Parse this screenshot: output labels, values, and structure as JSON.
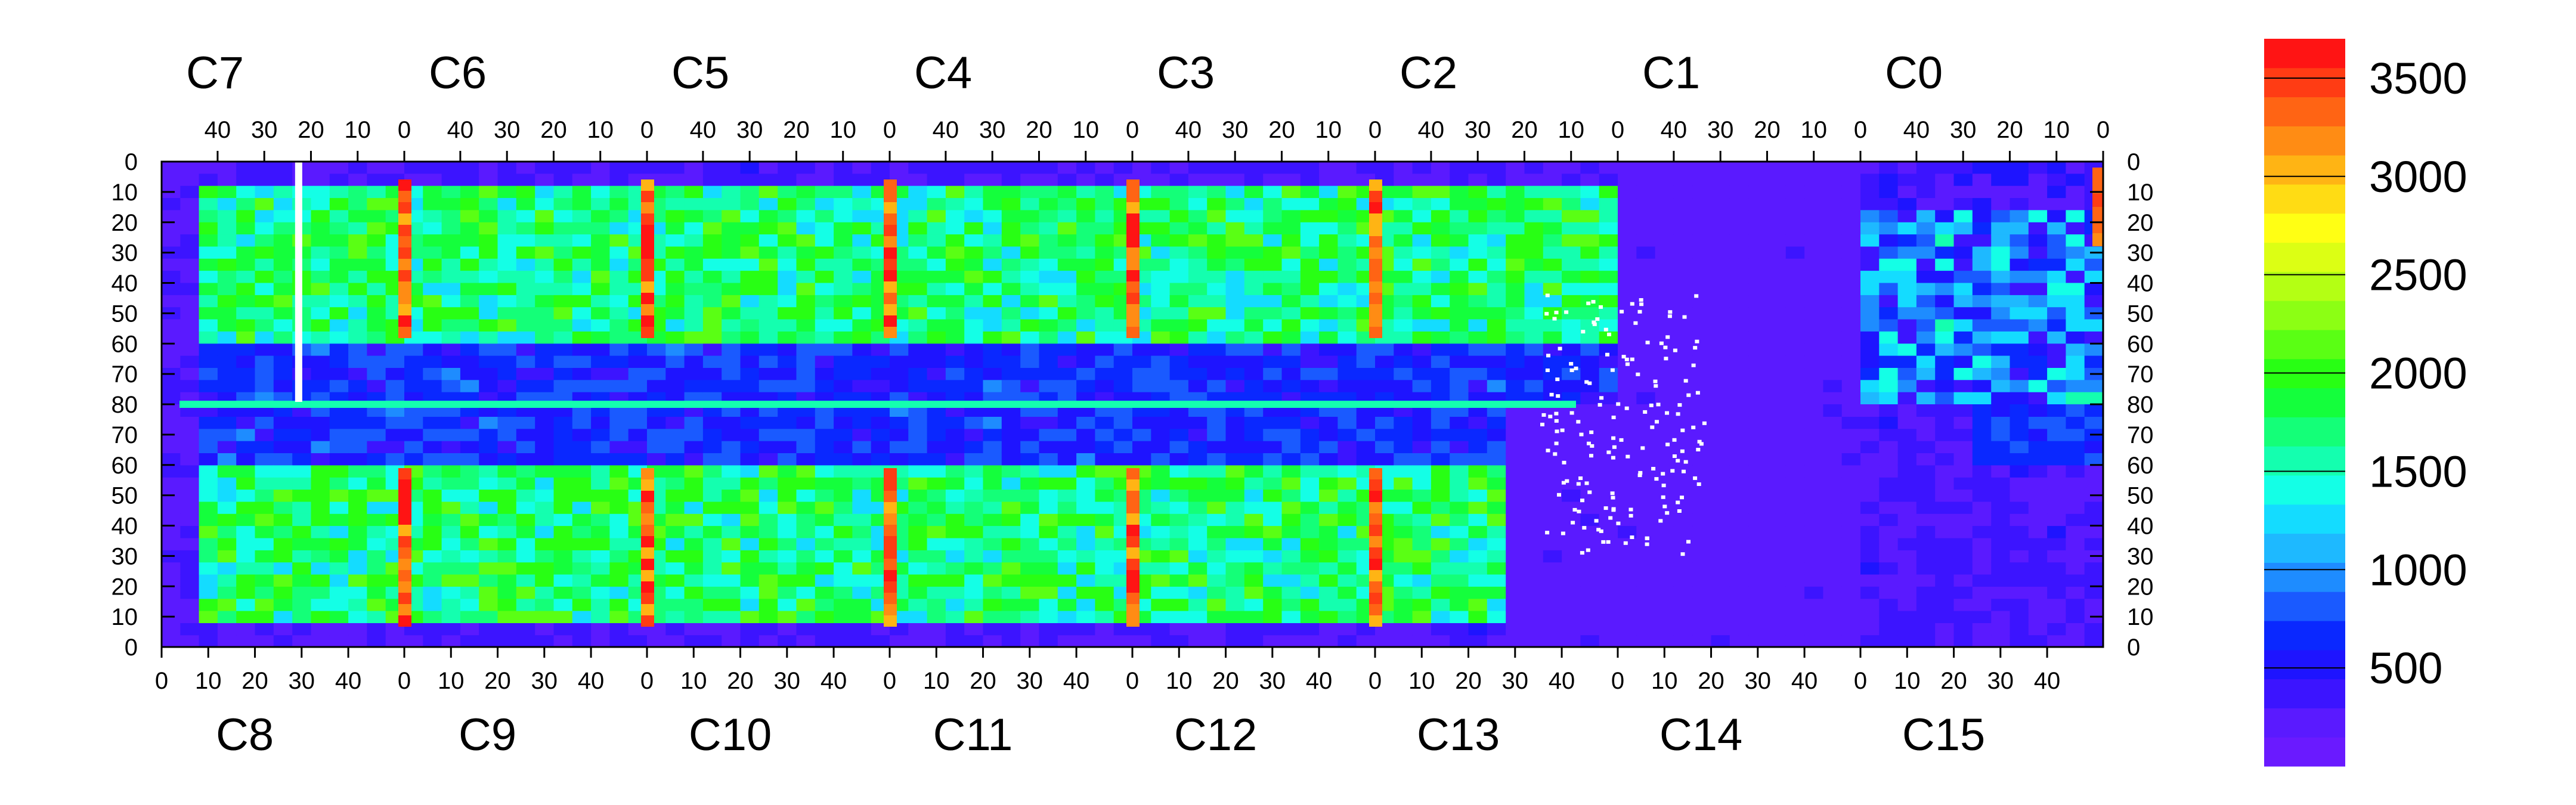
{
  "chart_data": {
    "type": "heatmap",
    "top_chips": [
      "C7",
      "C6",
      "C5",
      "C4",
      "C3",
      "C2",
      "C1",
      "C0"
    ],
    "bottom_chips": [
      "C8",
      "C9",
      "C10",
      "C11",
      "C12",
      "C13",
      "C14",
      "C15"
    ],
    "top_chip_ticks": [
      "40",
      "30",
      "20",
      "10",
      "0"
    ],
    "bottom_chip_ticks": [
      "0",
      "10",
      "20",
      "30",
      "40"
    ],
    "y_ticks": [
      "0",
      "10",
      "20",
      "30",
      "40",
      "50",
      "60",
      "70",
      "80",
      "70",
      "60",
      "50",
      "40",
      "30",
      "20",
      "10",
      "0"
    ],
    "columns_per_chip": 52,
    "rows_per_half": 80,
    "colorbar": {
      "range": [
        0,
        3700
      ],
      "ticks": [
        "500",
        "1000",
        "1500",
        "2000",
        "2500",
        "3000",
        "3500"
      ],
      "colors": [
        "#6a1aff",
        "#5a1aff",
        "#3c14ff",
        "#1e14ff",
        "#0a28ff",
        "#1a5aff",
        "#1e8cff",
        "#1eb9ff",
        "#14dcff",
        "#14ffe6",
        "#14ffaf",
        "#14ff78",
        "#14ff3c",
        "#28ff14",
        "#5aff14",
        "#8cff14",
        "#b4ff14",
        "#dcff14",
        "#ffff14",
        "#ffdc14",
        "#ffb414",
        "#ff8c14",
        "#ff6414",
        "#ff3c14",
        "#ff1414"
      ]
    },
    "features": {
      "hot_columns_red": "chip edges at column 0 (C6|C7, C5|C6, C4|C5, C3|C4, C2|C3, C0|C1)",
      "low_region": "C13/C14 mostly low (purple) with white empty pixels",
      "white_column": "C7 column near 20 is empty",
      "dense_region_level": 1700,
      "low_region_level": 150
    }
  }
}
